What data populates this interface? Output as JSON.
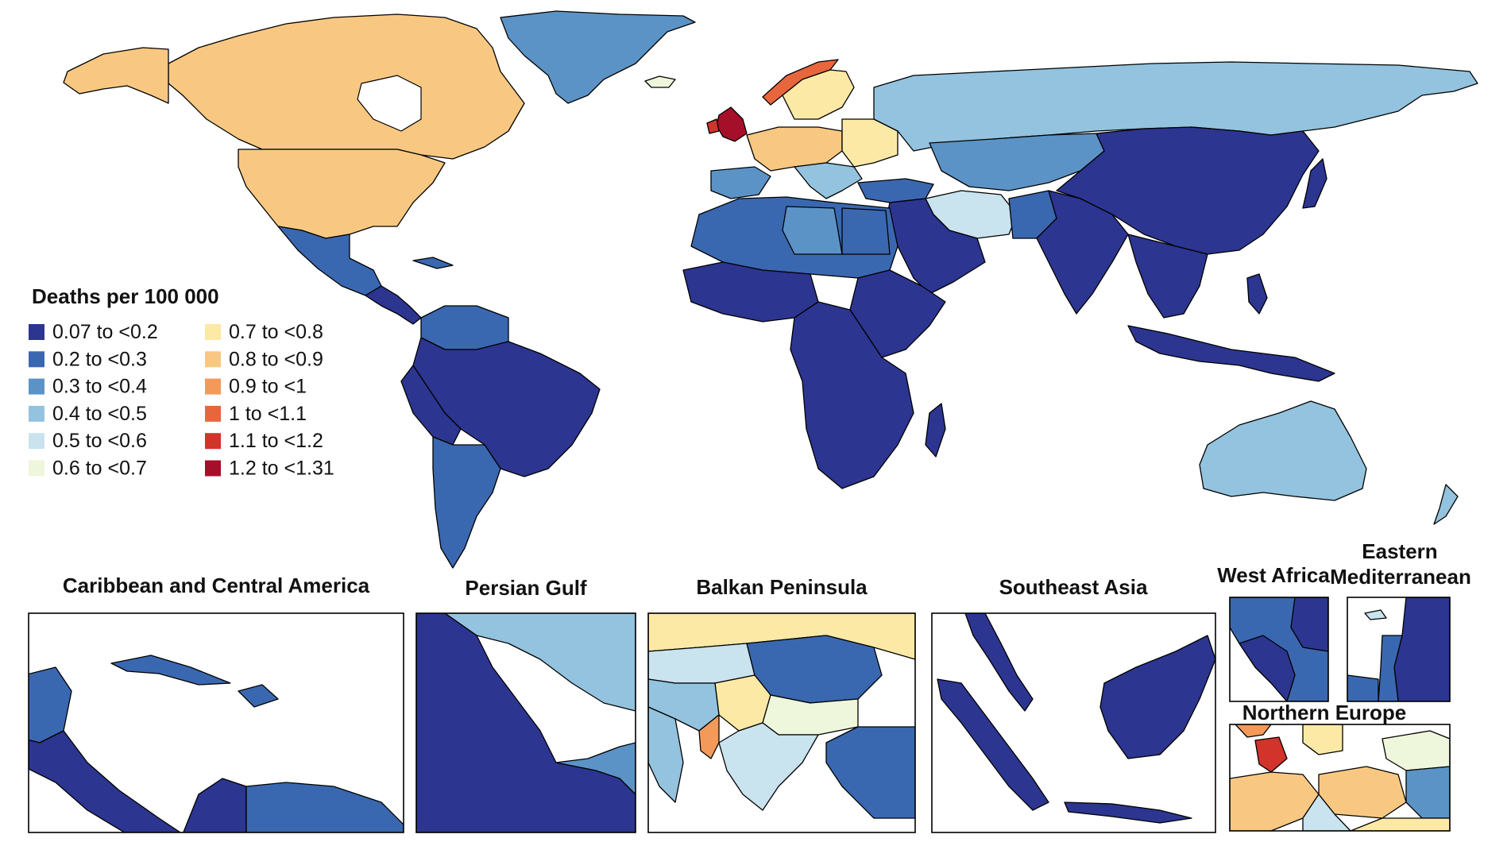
{
  "legend": {
    "title": "Deaths per 100 000",
    "items": [
      {
        "label": "0.07  to  <0.2",
        "color": "#2c3590"
      },
      {
        "label": "0.2  to  <0.3",
        "color": "#3a68b0"
      },
      {
        "label": "0.3  to  <0.4",
        "color": "#5c93c6"
      },
      {
        "label": "0.4  to  <0.5",
        "color": "#93c3de"
      },
      {
        "label": "0.5  to  <0.6",
        "color": "#c9e3ef"
      },
      {
        "label": "0.6  to  <0.7",
        "color": "#eef6dc"
      },
      {
        "label": "0.7  to  <0.8",
        "color": "#fde9a6"
      },
      {
        "label": "0.8  to  <0.9",
        "color": "#f8c882"
      },
      {
        "label": "0.9  to  <1",
        "color": "#f39a5a"
      },
      {
        "label": "1  to  <1.1",
        "color": "#e8663d"
      },
      {
        "label": "1.1  to  <1.2",
        "color": "#d2332a"
      },
      {
        "label": "1.2  to  <1.31",
        "color": "#a50f2a"
      }
    ]
  },
  "insets": {
    "caribbean": "Caribbean and Central America",
    "persian_gulf": "Persian Gulf",
    "balkan": "Balkan Peninsula",
    "southeast_asia": "Southeast Asia",
    "west_africa": "West Africa",
    "eastern_med_line1": "Eastern",
    "eastern_med_line2": "Mediterranean",
    "northern_europe": "Northern Europe"
  }
}
